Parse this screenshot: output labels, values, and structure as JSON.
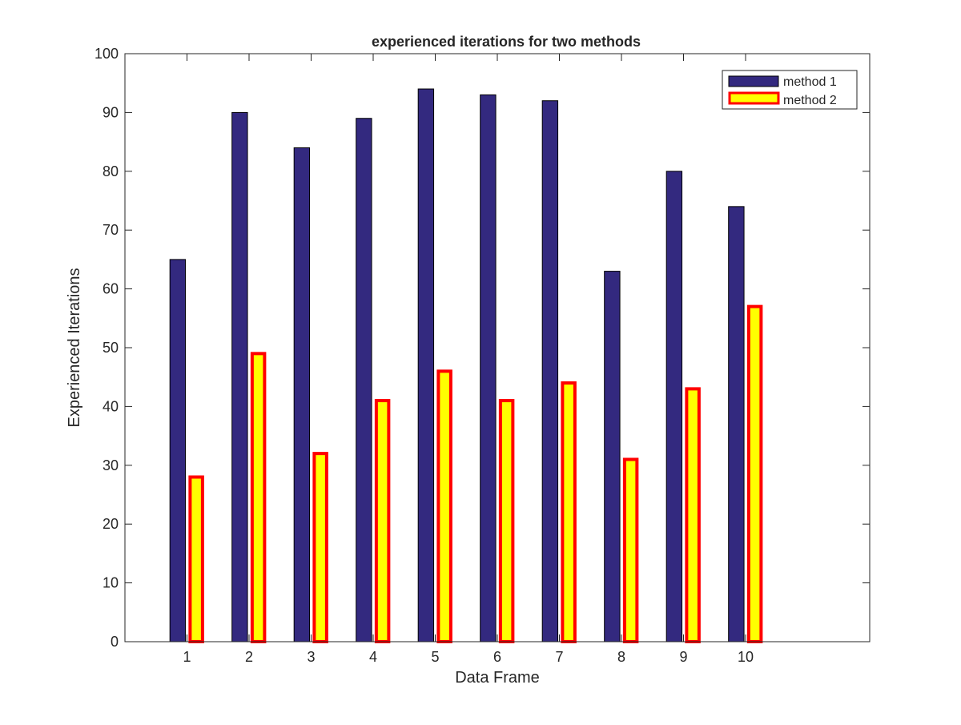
{
  "chart_data": {
    "type": "bar",
    "title": "experienced iterations for two methods",
    "xlabel": "Data Frame",
    "ylabel": "Experienced Iterations",
    "categories": [
      "1",
      "2",
      "3",
      "4",
      "5",
      "6",
      "7",
      "8",
      "9",
      "10"
    ],
    "series": [
      {
        "name": "method 1",
        "values": [
          65,
          90,
          84,
          89,
          94,
          93,
          92,
          63,
          80,
          74
        ],
        "fill": "#33297f",
        "edge": "#000000"
      },
      {
        "name": "method 2",
        "values": [
          28,
          49,
          32,
          41,
          46,
          41,
          44,
          31,
          43,
          57
        ],
        "fill": "#ffff00",
        "edge": "#ff0000"
      }
    ],
    "xlim": [
      0,
      12
    ],
    "ylim": [
      0,
      100
    ],
    "yticks": [
      0,
      10,
      20,
      30,
      40,
      50,
      60,
      70,
      80,
      90,
      100
    ],
    "grid": false,
    "legend_position": "top-right"
  }
}
